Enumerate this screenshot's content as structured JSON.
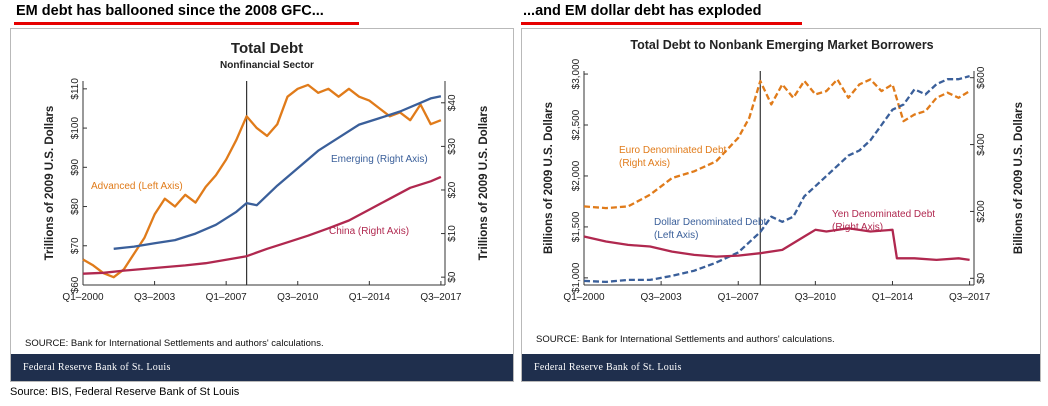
{
  "headlines": {
    "left": "EM debt has ballooned since the 2008 GFC...",
    "right": "...and EM dollar debt has exploded"
  },
  "footer_source": "Source: BIS, Federal Reserve Bank of St Louis",
  "colors": {
    "orange": "#e07b1a",
    "blue": "#3a5f9a",
    "crimson": "#b0284f",
    "fed_bar": "#1f2f4d",
    "headline_underline": "#e60000"
  },
  "chart_data": [
    {
      "type": "line",
      "title": "Total Debt",
      "subtitle": "Nonfinancial Sector",
      "ylabel": "Trillions of 2009 U.S. Dollars",
      "y2label": "Trillions of 2009 U.S. Dollars",
      "ylim": [
        60,
        112
      ],
      "y2lim": [
        -1.8,
        45
      ],
      "yticks": [
        "$60",
        "$70",
        "$80",
        "$90",
        "$100",
        "$110"
      ],
      "yticks_values": [
        60,
        70,
        80,
        90,
        100,
        110
      ],
      "y2ticks": [
        "$0",
        "$10",
        "$20",
        "$30",
        "$40"
      ],
      "y2ticks_values": [
        0,
        10,
        20,
        30,
        40
      ],
      "xlim": [
        2000.0,
        2017.7
      ],
      "xticks": [
        "Q1–2000",
        "Q3–2003",
        "Q1–2007",
        "Q3–2010",
        "Q1–2014",
        "Q3–2017"
      ],
      "xticks_values": [
        2000.0,
        2003.5,
        2007.0,
        2010.5,
        2014.0,
        2017.5
      ],
      "vline_x": 2008.0,
      "grid": false,
      "source": "SOURCE: Bank for International Settlements and authors' calculations.",
      "footer_brand": "Federal Reserve Bank of St. Louis",
      "series": [
        {
          "name": "Advanced (Left Axis)",
          "axis": "left",
          "color": "#e07b1a",
          "x": [
            2000.0,
            2000.5,
            2001.0,
            2001.5,
            2002.0,
            2002.5,
            2003.0,
            2003.5,
            2004.0,
            2004.5,
            2005.0,
            2005.5,
            2006.0,
            2006.5,
            2007.0,
            2007.5,
            2008.0,
            2008.5,
            2009.0,
            2009.5,
            2010.0,
            2010.5,
            2011.0,
            2011.5,
            2012.0,
            2012.5,
            2013.0,
            2013.5,
            2014.0,
            2014.5,
            2015.0,
            2015.5,
            2016.0,
            2016.5,
            2017.0,
            2017.5
          ],
          "values": [
            66.5,
            65.0,
            63.0,
            62.0,
            64.0,
            68.0,
            72.0,
            78.0,
            82.0,
            80.0,
            83.0,
            81.0,
            85.0,
            88.0,
            92.0,
            97.0,
            103.0,
            100.0,
            98.0,
            101.0,
            108.0,
            110.0,
            111.0,
            109.0,
            110.0,
            108.0,
            110.0,
            108.0,
            107.0,
            105.0,
            103.0,
            104.0,
            102.0,
            106.0,
            101.0,
            102.0
          ]
        },
        {
          "name": "Emerging (Right Axis)",
          "axis": "right",
          "color": "#3a5f9a",
          "x": [
            2001.5,
            2002.5,
            2003.5,
            2004.5,
            2005.5,
            2006.5,
            2007.5,
            2008.0,
            2008.5,
            2009.5,
            2010.5,
            2011.5,
            2012.5,
            2013.5,
            2014.5,
            2015.5,
            2016.5,
            2017.0,
            2017.5
          ],
          "values": [
            6.5,
            7.0,
            7.8,
            8.5,
            10.0,
            12.0,
            15.0,
            17.0,
            16.5,
            21.0,
            25.0,
            29.0,
            32.0,
            35.0,
            36.5,
            38.0,
            40.0,
            41.0,
            41.5
          ]
        },
        {
          "name": "China (Right Axis)",
          "axis": "right",
          "color": "#b0284f",
          "x": [
            2000.0,
            2001.0,
            2002.0,
            2003.0,
            2004.0,
            2005.0,
            2006.0,
            2007.0,
            2008.0,
            2009.0,
            2010.0,
            2011.0,
            2012.0,
            2013.0,
            2014.0,
            2015.0,
            2016.0,
            2017.0,
            2017.5
          ],
          "values": [
            0.8,
            1.0,
            1.5,
            1.9,
            2.3,
            2.7,
            3.2,
            4.0,
            4.8,
            6.5,
            8.0,
            9.5,
            11.2,
            13.0,
            15.5,
            18.0,
            20.5,
            22.0,
            23.0
          ]
        }
      ]
    },
    {
      "type": "line",
      "title": "Total Debt to Nonbank Emerging Market Borrowers",
      "ylabel": "Billions of 2009 U.S. Dollars",
      "y2label": "Billions of 2009 U.S. Dollars",
      "ylim": [
        930,
        3030
      ],
      "y2lim": [
        -20,
        620
      ],
      "yticks": [
        "$1,000",
        "$1,500",
        "$2,000",
        "$2,500",
        "$3,000"
      ],
      "yticks_values": [
        1000,
        1500,
        2000,
        2500,
        3000
      ],
      "y2ticks": [
        "$0",
        "$200",
        "$400",
        "$600"
      ],
      "y2ticks_values": [
        0,
        200,
        400,
        600
      ],
      "xlim": [
        2000.0,
        2017.7
      ],
      "xticks": [
        "Q1–2000",
        "Q3–2003",
        "Q1–2007",
        "Q3–2010",
        "Q1–2014",
        "Q3–2017"
      ],
      "xticks_values": [
        2000.0,
        2003.5,
        2007.0,
        2010.5,
        2014.0,
        2017.5
      ],
      "vline_x": 2008.0,
      "grid": false,
      "source": "SOURCE: Bank for International Settlements and authors' calculations.",
      "footer_brand": "Federal Reserve Bank of St. Louis",
      "series": [
        {
          "name": "Euro Denominated Debt (Right Axis)",
          "axis": "right",
          "color": "#e07b1a",
          "dashed": true,
          "x": [
            2000.0,
            2001.0,
            2002.0,
            2003.0,
            2004.0,
            2005.0,
            2006.0,
            2007.0,
            2007.5,
            2008.0,
            2008.5,
            2009.0,
            2009.5,
            2010.0,
            2010.5,
            2011.0,
            2011.5,
            2012.0,
            2012.5,
            2013.0,
            2013.5,
            2014.0,
            2014.5,
            2015.0,
            2015.5,
            2016.0,
            2016.5,
            2017.0,
            2017.5
          ],
          "values": [
            215,
            210,
            215,
            250,
            300,
            320,
            350,
            420,
            480,
            590,
            520,
            580,
            540,
            590,
            550,
            560,
            595,
            540,
            580,
            595,
            560,
            580,
            470,
            490,
            500,
            540,
            555,
            540,
            560
          ]
        },
        {
          "name": "Dollar Denominated Debt (Left Axis)",
          "axis": "left",
          "color": "#3a5f9a",
          "dashed": true,
          "x": [
            2000.0,
            2001.0,
            2002.0,
            2003.0,
            2004.0,
            2005.0,
            2006.0,
            2007.0,
            2007.5,
            2008.0,
            2008.5,
            2009.0,
            2009.5,
            2010.0,
            2010.5,
            2011.0,
            2011.5,
            2012.0,
            2012.5,
            2013.0,
            2013.5,
            2014.0,
            2014.5,
            2015.0,
            2015.5,
            2016.0,
            2016.5,
            2017.0,
            2017.5
          ],
          "values": [
            970,
            960,
            980,
            980,
            1020,
            1070,
            1150,
            1250,
            1350,
            1450,
            1600,
            1550,
            1600,
            1800,
            1900,
            2000,
            2100,
            2200,
            2250,
            2350,
            2500,
            2650,
            2700,
            2850,
            2800,
            2900,
            2950,
            2950,
            2980
          ]
        },
        {
          "name": "Yen Denominated Debt (Right Axis)",
          "axis": "right",
          "color": "#b0284f",
          "dashed": false,
          "x": [
            2000.0,
            2001.0,
            2002.0,
            2003.0,
            2004.0,
            2005.0,
            2006.0,
            2007.0,
            2008.0,
            2009.0,
            2010.0,
            2010.5,
            2011.0,
            2012.0,
            2013.0,
            2014.0,
            2014.2,
            2015.0,
            2016.0,
            2017.0,
            2017.5
          ],
          "values": [
            125,
            110,
            100,
            95,
            80,
            70,
            65,
            68,
            75,
            85,
            125,
            145,
            140,
            150,
            140,
            145,
            60,
            60,
            55,
            60,
            55
          ]
        }
      ]
    }
  ]
}
